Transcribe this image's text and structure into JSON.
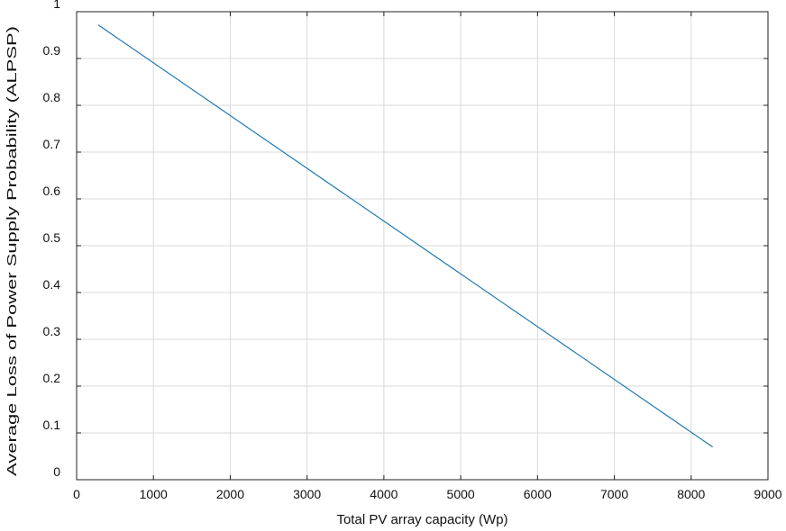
{
  "chart_data": {
    "type": "line",
    "title": "",
    "xlabel": "Total PV array capacity (Wp)",
    "ylabel": "Average Loss of Power Supply Probability (ALPSP)",
    "xlim": [
      0,
      9000
    ],
    "ylim": [
      0,
      1
    ],
    "xticks": [
      0,
      1000,
      2000,
      3000,
      4000,
      5000,
      6000,
      7000,
      8000,
      9000
    ],
    "yticks": [
      0,
      0.1,
      0.2,
      0.3,
      0.4,
      0.5,
      0.6,
      0.7,
      0.8,
      0.9,
      1
    ],
    "xtick_labels": [
      "0",
      "1000",
      "2000",
      "3000",
      "4000",
      "5000",
      "6000",
      "7000",
      "8000",
      "9000"
    ],
    "ytick_labels": [
      "0",
      "0.1",
      "0.2",
      "0.3",
      "0.4",
      "0.5",
      "0.6",
      "0.7",
      "0.8",
      "0.9",
      "1"
    ],
    "grid": true,
    "series": [
      {
        "color": "#1f77b4",
        "x": [
          280,
          8280
        ],
        "y": [
          0.972,
          0.07
        ]
      }
    ]
  }
}
